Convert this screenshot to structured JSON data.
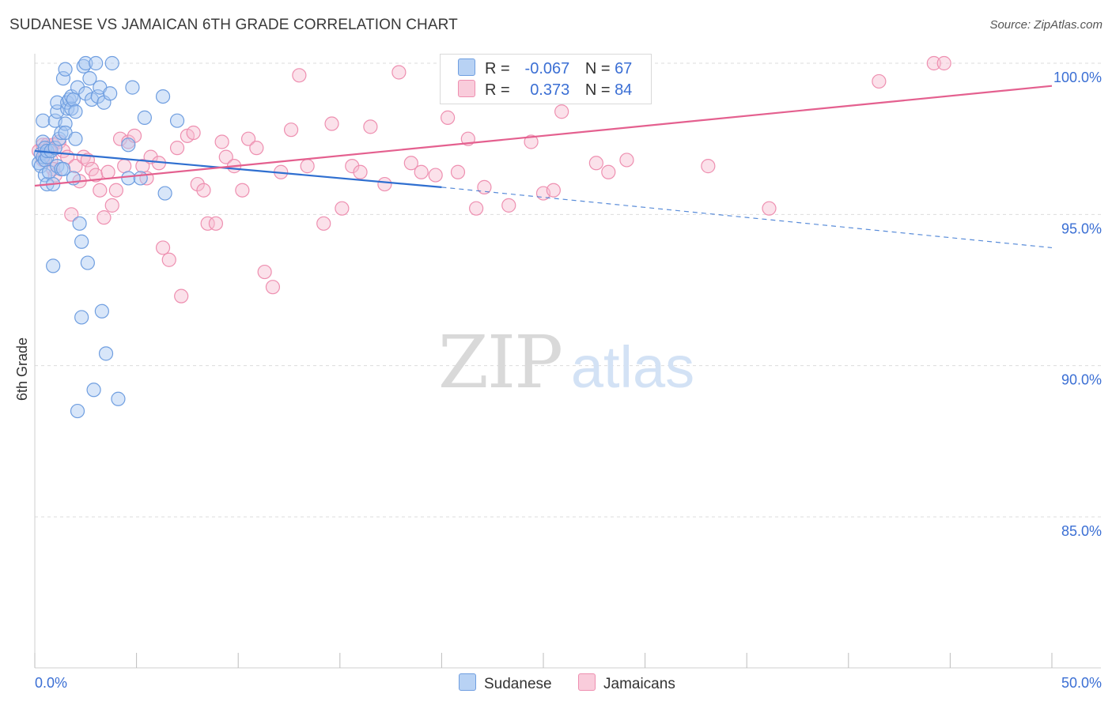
{
  "title": "SUDANESE VS JAMAICAN 6TH GRADE CORRELATION CHART",
  "source": "Source: ZipAtlas.com",
  "watermark": {
    "zip": "ZIP",
    "atlas": "atlas"
  },
  "colors": {
    "sudanese_fill": "#a9c8f2",
    "sudanese_stroke": "#6f9ee0",
    "sudanese_line": "#2f6fd0",
    "jamaican_fill": "#f7bcd0",
    "jamaican_stroke": "#ee8fb0",
    "jamaican_line": "#e4608f",
    "tick_label": "#3b6fd4",
    "grid": "#dcdcdc"
  },
  "legend_top": {
    "rows": [
      {
        "series": "Sudanese",
        "r_label": "R =",
        "r_value": "-0.067",
        "n_label": "N =",
        "n_value": "67"
      },
      {
        "series": "Jamaicans",
        "r_label": "R =",
        "r_value": "0.373",
        "n_label": "N =",
        "n_value": "84"
      }
    ]
  },
  "legend_bottom": [
    "Sudanese",
    "Jamaicans"
  ],
  "chart_data": {
    "type": "scatter",
    "title": "SUDANESE VS JAMAICAN 6TH GRADE CORRELATION CHART",
    "xlabel": "",
    "ylabel": "6th Grade",
    "xlim": [
      0,
      50
    ],
    "ylim": [
      80.5,
      100.8
    ],
    "x_tick_labels": [
      "0.0%",
      "50.0%"
    ],
    "y_ticks": [
      85,
      90,
      95,
      100
    ],
    "y_tick_labels": [
      "85.0%",
      "90.0%",
      "95.0%",
      "100.0%"
    ],
    "grid": true,
    "legend_position": "bottom",
    "series": [
      {
        "name": "Sudanese",
        "x": [
          0.2,
          0.3,
          0.3,
          0.4,
          0.4,
          0.4,
          0.5,
          0.5,
          0.5,
          0.6,
          0.6,
          0.6,
          0.7,
          0.8,
          0.9,
          0.9,
          1.0,
          1.0,
          1.1,
          1.1,
          1.1,
          1.2,
          1.3,
          1.3,
          1.4,
          1.4,
          1.5,
          1.5,
          1.5,
          1.6,
          1.6,
          1.7,
          1.8,
          1.8,
          1.9,
          1.9,
          2.0,
          2.0,
          2.1,
          2.1,
          2.2,
          2.3,
          2.3,
          2.4,
          2.5,
          2.5,
          2.6,
          2.7,
          2.8,
          2.9,
          3.0,
          3.1,
          3.2,
          3.3,
          3.4,
          3.5,
          3.7,
          3.8,
          4.1,
          4.6,
          4.6,
          4.8,
          5.2,
          5.4,
          6.3,
          6.4,
          7.0
        ],
        "y": [
          96.7,
          97.0,
          96.6,
          97.4,
          96.9,
          98.1,
          97.2,
          96.8,
          96.3,
          96.9,
          97.1,
          96.0,
          96.4,
          97.1,
          96.0,
          93.3,
          97.2,
          98.1,
          96.6,
          98.4,
          98.7,
          97.5,
          97.7,
          96.5,
          99.5,
          96.5,
          98.0,
          97.7,
          99.8,
          98.5,
          98.7,
          98.8,
          98.5,
          98.9,
          96.2,
          98.8,
          97.5,
          98.4,
          99.2,
          88.5,
          94.7,
          91.6,
          94.1,
          99.9,
          100.0,
          99.0,
          93.4,
          99.5,
          98.8,
          89.2,
          100.0,
          98.9,
          99.2,
          91.8,
          98.7,
          90.4,
          99.0,
          100.0,
          88.9,
          97.3,
          96.2,
          99.2,
          96.2,
          98.2,
          98.9,
          95.7,
          98.1
        ],
        "trend": {
          "x": [
            0,
            20
          ],
          "y": [
            97.1,
            95.9
          ],
          "dashed_to": [
            50,
            93.9
          ]
        }
      },
      {
        "name": "Jamaicans",
        "x": [
          0.2,
          0.4,
          0.4,
          0.5,
          0.6,
          0.7,
          0.8,
          0.9,
          0.9,
          1.0,
          1.2,
          1.4,
          1.6,
          1.8,
          2.0,
          2.2,
          2.4,
          2.6,
          2.8,
          3.0,
          3.2,
          3.4,
          3.6,
          3.8,
          4.0,
          4.2,
          4.4,
          4.6,
          4.9,
          5.3,
          5.5,
          5.7,
          6.1,
          6.3,
          6.6,
          7.0,
          7.2,
          7.5,
          7.8,
          8.0,
          8.3,
          8.5,
          8.9,
          9.2,
          9.4,
          9.8,
          10.2,
          10.5,
          10.9,
          11.3,
          11.7,
          12.1,
          12.6,
          13.0,
          13.4,
          14.2,
          14.6,
          15.1,
          15.6,
          16.0,
          16.5,
          17.2,
          17.9,
          18.5,
          19.0,
          19.7,
          20.3,
          20.8,
          21.3,
          21.7,
          22.1,
          23.3,
          24.4,
          25.0,
          25.5,
          25.9,
          27.6,
          28.2,
          29.1,
          33.1,
          36.1,
          41.5,
          44.2,
          44.7
        ],
        "y": [
          97.1,
          96.8,
          97.3,
          97.0,
          97.3,
          97.2,
          96.8,
          97.3,
          96.5,
          96.3,
          97.4,
          97.1,
          96.9,
          95.0,
          96.6,
          96.1,
          96.9,
          96.8,
          96.5,
          96.3,
          95.8,
          94.9,
          96.4,
          95.3,
          95.8,
          97.5,
          96.6,
          97.4,
          97.6,
          96.6,
          96.2,
          96.9,
          96.7,
          93.9,
          93.5,
          97.2,
          92.3,
          97.6,
          97.7,
          96.0,
          95.8,
          94.7,
          94.7,
          97.4,
          96.9,
          96.6,
          95.8,
          97.5,
          97.2,
          93.1,
          92.6,
          96.4,
          97.8,
          99.6,
          96.6,
          94.7,
          98.0,
          95.2,
          96.6,
          96.4,
          97.9,
          96.0,
          99.7,
          96.7,
          96.4,
          96.3,
          98.2,
          96.4,
          97.5,
          95.2,
          95.9,
          95.3,
          97.4,
          95.7,
          95.8,
          98.4,
          96.7,
          96.4,
          96.8,
          96.6,
          95.2,
          99.4,
          100.0,
          100.0
        ],
        "trend": {
          "x": [
            0,
            50
          ],
          "y": [
            95.95,
            99.25
          ]
        }
      }
    ]
  }
}
